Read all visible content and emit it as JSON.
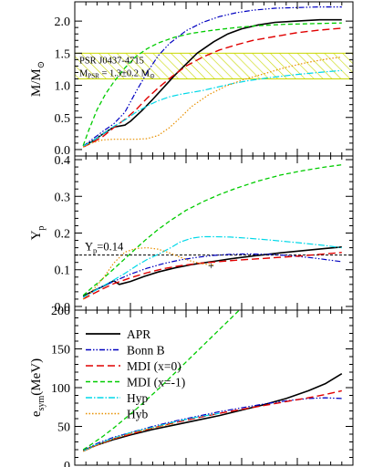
{
  "chart_data": [
    {
      "type": "line",
      "ylabel": "M/M⊙",
      "ylabel_main": "M/M",
      "ylabel_sub": "⊙",
      "ylim": [
        -0.1,
        2.3
      ],
      "yticks": [
        0.0,
        0.5,
        1.0,
        1.5,
        2.0
      ],
      "ytick_labels": [
        "0.0",
        "0.5",
        "1.0",
        "1.5",
        "2.0"
      ],
      "xlim": [
        0,
        1
      ],
      "band": {
        "y_range": [
          1.1,
          1.5
        ],
        "label_line1": "PSR J0437-4715",
        "label_line2_main": "M",
        "label_line2_sub": "PSR",
        "label_line2_rest": " = 1.3±0.2 M",
        "label_line2_sun": "⊙",
        "color": "#c8d800"
      },
      "series": [
        {
          "key": "APR",
          "color": "#000000",
          "dash": "",
          "width": 1.6,
          "x": [
            0.03,
            0.06,
            0.1,
            0.14,
            0.18,
            0.2,
            0.24,
            0.28,
            0.32,
            0.36,
            0.4,
            0.44,
            0.5,
            0.55,
            0.6,
            0.66,
            0.72,
            0.8,
            0.88,
            0.96
          ],
          "y": [
            0.05,
            0.12,
            0.24,
            0.35,
            0.38,
            0.44,
            0.6,
            0.78,
            0.97,
            1.16,
            1.33,
            1.5,
            1.68,
            1.8,
            1.88,
            1.94,
            1.98,
            2.0,
            2.02,
            2.02
          ]
        },
        {
          "key": "BonnB",
          "color": "#0000c0",
          "dash": "6,2,1.5,2,1.5,2",
          "width": 1.2,
          "x": [
            0.03,
            0.06,
            0.1,
            0.14,
            0.18,
            0.22,
            0.26,
            0.3,
            0.34,
            0.4,
            0.46,
            0.52,
            0.58,
            0.64,
            0.72,
            0.8,
            0.88,
            0.96
          ],
          "y": [
            0.05,
            0.15,
            0.28,
            0.4,
            0.58,
            0.9,
            1.2,
            1.46,
            1.65,
            1.85,
            1.98,
            2.07,
            2.13,
            2.17,
            2.2,
            2.21,
            2.22,
            2.22
          ]
        },
        {
          "key": "MDI0",
          "color": "#e00000",
          "dash": "8,4",
          "width": 1.4,
          "x": [
            0.03,
            0.06,
            0.1,
            0.14,
            0.18,
            0.22,
            0.26,
            0.3,
            0.35,
            0.4,
            0.46,
            0.52,
            0.58,
            0.64,
            0.72,
            0.8,
            0.88,
            0.96
          ],
          "y": [
            0.04,
            0.1,
            0.2,
            0.34,
            0.47,
            0.62,
            0.8,
            0.96,
            1.14,
            1.3,
            1.44,
            1.55,
            1.63,
            1.7,
            1.76,
            1.82,
            1.86,
            1.89
          ]
        },
        {
          "key": "MDI1",
          "color": "#00cc00",
          "dash": "5,3",
          "width": 1.3,
          "x": [
            0.03,
            0.05,
            0.08,
            0.11,
            0.14,
            0.18,
            0.22,
            0.26,
            0.3,
            0.36,
            0.42,
            0.5,
            0.58,
            0.66,
            0.76,
            0.86,
            0.96
          ],
          "y": [
            0.06,
            0.3,
            0.62,
            0.86,
            1.05,
            1.27,
            1.45,
            1.57,
            1.66,
            1.75,
            1.81,
            1.86,
            1.9,
            1.93,
            1.95,
            1.96,
            1.97
          ]
        },
        {
          "key": "Hyp",
          "color": "#00d8e8",
          "dash": "7,2,1.5,2",
          "width": 1.2,
          "x": [
            0.03,
            0.06,
            0.1,
            0.14,
            0.18,
            0.22,
            0.26,
            0.3,
            0.34,
            0.38,
            0.42,
            0.46,
            0.5,
            0.56,
            0.62,
            0.7,
            0.8,
            0.9,
            0.96
          ],
          "y": [
            0.05,
            0.12,
            0.24,
            0.36,
            0.46,
            0.58,
            0.68,
            0.76,
            0.82,
            0.86,
            0.89,
            0.92,
            0.96,
            1.02,
            1.07,
            1.12,
            1.17,
            1.21,
            1.23
          ]
        },
        {
          "key": "Hyb",
          "color": "#e89000",
          "dash": "1.5,2",
          "width": 1.2,
          "x": [
            0.03,
            0.06,
            0.1,
            0.14,
            0.18,
            0.22,
            0.26,
            0.3,
            0.34,
            0.38,
            0.42,
            0.48,
            0.54,
            0.6,
            0.68,
            0.76,
            0.84,
            0.92,
            0.96
          ],
          "y": [
            0.04,
            0.1,
            0.15,
            0.16,
            0.16,
            0.16,
            0.17,
            0.22,
            0.34,
            0.5,
            0.67,
            0.85,
            0.98,
            1.08,
            1.18,
            1.28,
            1.36,
            1.42,
            1.44
          ]
        }
      ]
    },
    {
      "type": "line",
      "ylabel": "Y_p",
      "ylabel_main": "Y",
      "ylabel_sub": "p",
      "ylim": [
        -0.01,
        0.41
      ],
      "yticks": [
        0.0,
        0.1,
        0.2,
        0.3,
        0.4
      ],
      "ytick_labels": [
        "0.0",
        "0.1",
        "0.2",
        "0.3",
        "0.4"
      ],
      "xlim": [
        0,
        1
      ],
      "reference_line": {
        "y": 0.14,
        "label_main": "Y",
        "label_sub": "p",
        "label_rest": "=0.14"
      },
      "marker": {
        "symbol": "+",
        "x": 0.49,
        "y": 0.112
      },
      "series": [
        {
          "key": "APR",
          "color": "#000000",
          "dash": "",
          "width": 1.6,
          "x": [
            0.03,
            0.06,
            0.1,
            0.14,
            0.16,
            0.2,
            0.25,
            0.3,
            0.36,
            0.42,
            0.5,
            0.58,
            0.66,
            0.74,
            0.82,
            0.9,
            0.96
          ],
          "y": [
            0.028,
            0.04,
            0.054,
            0.07,
            0.06,
            0.068,
            0.082,
            0.094,
            0.105,
            0.114,
            0.123,
            0.132,
            0.139,
            0.146,
            0.152,
            0.158,
            0.162
          ]
        },
        {
          "key": "BonnB",
          "color": "#0000c0",
          "dash": "6,2,1.5,2,1.5,2",
          "width": 1.2,
          "x": [
            0.03,
            0.06,
            0.1,
            0.14,
            0.2,
            0.26,
            0.32,
            0.38,
            0.44,
            0.5,
            0.56,
            0.62,
            0.7,
            0.78,
            0.86,
            0.96
          ],
          "y": [
            0.025,
            0.038,
            0.055,
            0.068,
            0.088,
            0.104,
            0.117,
            0.127,
            0.134,
            0.139,
            0.142,
            0.143,
            0.142,
            0.138,
            0.132,
            0.122
          ]
        },
        {
          "key": "MDI0",
          "color": "#e00000",
          "dash": "8,4",
          "width": 1.4,
          "x": [
            0.03,
            0.06,
            0.1,
            0.14,
            0.2,
            0.26,
            0.32,
            0.38,
            0.44,
            0.5,
            0.58,
            0.66,
            0.74,
            0.82,
            0.9,
            0.96
          ],
          "y": [
            0.02,
            0.032,
            0.048,
            0.062,
            0.078,
            0.092,
            0.103,
            0.111,
            0.117,
            0.121,
            0.126,
            0.13,
            0.134,
            0.138,
            0.143,
            0.147
          ]
        },
        {
          "key": "MDI1",
          "color": "#00cc00",
          "dash": "5,3",
          "width": 1.3,
          "x": [
            0.03,
            0.06,
            0.1,
            0.14,
            0.18,
            0.22,
            0.26,
            0.3,
            0.34,
            0.4,
            0.46,
            0.52,
            0.58,
            0.66,
            0.74,
            0.82,
            0.9,
            0.96
          ],
          "y": [
            0.03,
            0.05,
            0.075,
            0.102,
            0.13,
            0.158,
            0.185,
            0.21,
            0.232,
            0.262,
            0.285,
            0.305,
            0.322,
            0.342,
            0.358,
            0.37,
            0.38,
            0.386
          ]
        },
        {
          "key": "Hyp",
          "color": "#00d8e8",
          "dash": "7,2,1.5,2",
          "width": 1.2,
          "x": [
            0.03,
            0.06,
            0.1,
            0.14,
            0.18,
            0.22,
            0.26,
            0.3,
            0.34,
            0.38,
            0.42,
            0.46,
            0.5,
            0.56,
            0.62,
            0.7,
            0.8,
            0.9,
            0.96
          ],
          "y": [
            0.025,
            0.038,
            0.055,
            0.072,
            0.09,
            0.11,
            0.128,
            0.142,
            0.158,
            0.176,
            0.186,
            0.19,
            0.19,
            0.189,
            0.186,
            0.181,
            0.174,
            0.166,
            0.16
          ]
        },
        {
          "key": "Hyb",
          "color": "#e89000",
          "dash": "1.5,2",
          "width": 1.2,
          "x": [
            0.03,
            0.06,
            0.1,
            0.14,
            0.18,
            0.22,
            0.26,
            0.3,
            0.34,
            0.38,
            0.42,
            0.46,
            0.5
          ],
          "y": [
            0.02,
            0.04,
            0.075,
            0.118,
            0.148,
            0.158,
            0.16,
            0.156,
            0.146,
            0.134,
            0.123,
            0.116,
            0.113
          ]
        }
      ]
    },
    {
      "type": "line",
      "ylabel": "e_sym(MeV)",
      "ylabel_main": "e",
      "ylabel_sub": "sym",
      "ylabel_rest": "(MeV)",
      "ylim": [
        0,
        200
      ],
      "yticks": [
        0,
        50,
        100,
        150,
        200
      ],
      "ytick_labels": [
        "0",
        "50",
        "100",
        "150",
        "200"
      ],
      "xlim": [
        0,
        1
      ],
      "legend": {
        "position": "top-left",
        "entries": [
          {
            "key": "APR",
            "label": "APR"
          },
          {
            "key": "BonnB",
            "label": "Bonn B"
          },
          {
            "key": "MDI0",
            "label": "MDI (x=0)"
          },
          {
            "key": "MDI1",
            "label": "MDI (x=-1)"
          },
          {
            "key": "Hyp",
            "label": "Hyp"
          },
          {
            "key": "Hyb",
            "label": "Hyb"
          }
        ]
      },
      "series": [
        {
          "key": "APR",
          "color": "#000000",
          "dash": "",
          "width": 1.6,
          "x": [
            0.03,
            0.08,
            0.14,
            0.2,
            0.28,
            0.36,
            0.44,
            0.52,
            0.6,
            0.68,
            0.76,
            0.84,
            0.9,
            0.96
          ],
          "y": [
            19,
            26,
            33,
            39,
            46,
            52,
            58,
            64,
            71,
            78,
            86,
            96,
            105,
            118
          ]
        },
        {
          "key": "BonnB",
          "color": "#0000c0",
          "dash": "6,2,1.5,2,1.5,2",
          "width": 1.2,
          "x": [
            0.03,
            0.08,
            0.14,
            0.2,
            0.28,
            0.36,
            0.44,
            0.52,
            0.6,
            0.68,
            0.76,
            0.84,
            0.9,
            0.96
          ],
          "y": [
            19,
            28,
            36,
            42,
            50,
            57,
            63,
            69,
            74,
            79,
            83,
            86,
            87,
            86
          ]
        },
        {
          "key": "MDI0",
          "color": "#e00000",
          "dash": "8,4",
          "width": 1.4,
          "x": [
            0.03,
            0.08,
            0.14,
            0.2,
            0.28,
            0.36,
            0.44,
            0.52,
            0.6,
            0.68,
            0.76,
            0.84,
            0.9,
            0.96
          ],
          "y": [
            18,
            26,
            34,
            40,
            48,
            55,
            61,
            67,
            72,
            77,
            82,
            87,
            91,
            96
          ]
        },
        {
          "key": "MDI1",
          "color": "#00cc00",
          "dash": "5,3",
          "width": 1.3,
          "x": [
            0.03,
            0.06,
            0.1,
            0.14,
            0.18,
            0.22,
            0.26,
            0.3,
            0.34,
            0.38,
            0.42,
            0.46,
            0.5,
            0.54,
            0.58,
            0.62
          ],
          "y": [
            20,
            27,
            37,
            48,
            60,
            72,
            85,
            98,
            112,
            126,
            140,
            154,
            168,
            182,
            196,
            210
          ]
        },
        {
          "key": "Hyp",
          "color": "#00d8e8",
          "dash": "7,2,1.5,2",
          "width": 1.2,
          "x": [
            0.03,
            0.08,
            0.14,
            0.2,
            0.28,
            0.36,
            0.44,
            0.52
          ],
          "y": [
            18,
            27,
            35,
            42,
            49,
            56,
            62,
            67
          ]
        },
        {
          "key": "Hyb",
          "color": "#e89000",
          "dash": "1.5,2",
          "width": 1.2,
          "x": [
            0.03,
            0.08,
            0.14,
            0.2,
            0.28,
            0.36
          ],
          "y": [
            18,
            26,
            34,
            41,
            48,
            54
          ]
        }
      ]
    }
  ]
}
